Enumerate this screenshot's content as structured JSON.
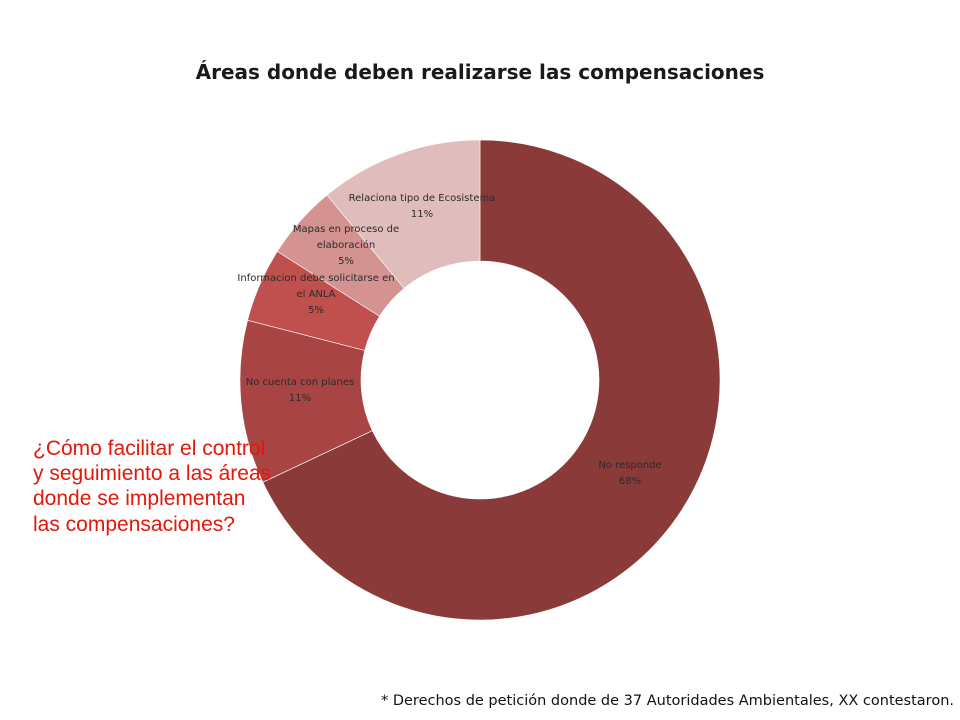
{
  "chart_data": {
    "type": "pie",
    "title": "Áreas donde deben realizarse las compensaciones",
    "slices": [
      {
        "label_lines": [
          "No responde"
        ],
        "value": 68,
        "value_label": "68%",
        "color": "#8b3a3a"
      },
      {
        "label_lines": [
          "No cuenta con planes"
        ],
        "value": 11,
        "value_label": "11%",
        "color": "#a84444"
      },
      {
        "label_lines": [
          "Informacion debe solicitarse en",
          "el ANLA"
        ],
        "value": 5,
        "value_label": "5%",
        "color": "#c0504d"
      },
      {
        "label_lines": [
          "Mapas en proceso de",
          "elaboración"
        ],
        "value": 5,
        "value_label": "5%",
        "color": "#d49391"
      },
      {
        "label_lines": [
          "Relaciona tipo de Ecosistema"
        ],
        "value": 11,
        "value_label": "11%",
        "color": "#e0bcbc"
      }
    ]
  },
  "question": "¿Cómo facilitar el control y seguimiento a las áreas donde se implementan las compensaciones?",
  "footnote": "* Derechos de petición donde de 37 Autoridades Ambientales, XX contestaron."
}
